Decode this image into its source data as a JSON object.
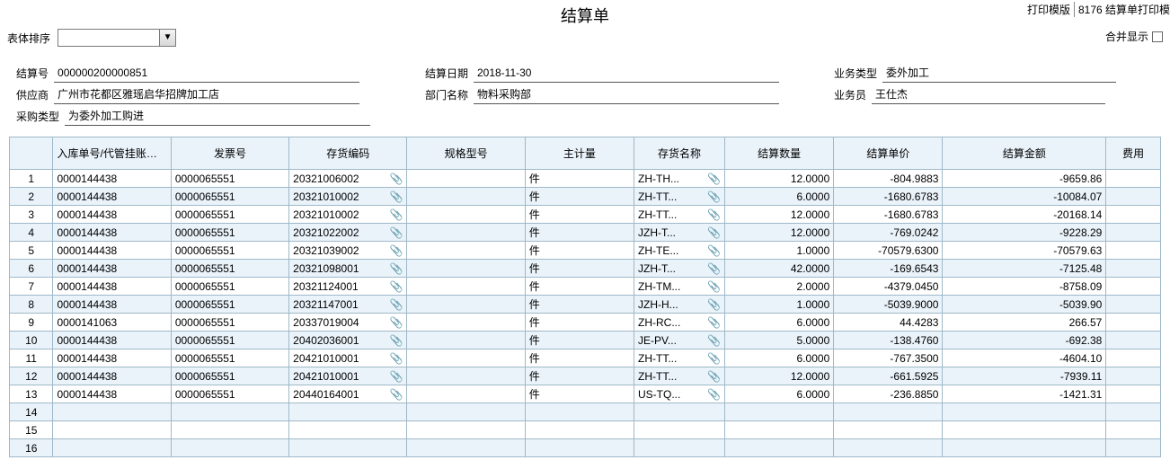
{
  "header": {
    "title": "结算单",
    "print_template_label": "打印模版",
    "print_template_value": "8176 结算单打印模",
    "sort_label": "表体排序",
    "merge_label": "合并显示"
  },
  "fields": {
    "settlement_no_label": "结算号",
    "settlement_no": "000000200000851",
    "supplier_label": "供应商",
    "supplier": "广州市花都区雅瑶启华招牌加工店",
    "purchase_type_label": "采购类型",
    "purchase_type": "为委外加工购进",
    "settle_date_label": "结算日期",
    "settle_date": "2018-11-30",
    "dept_label": "部门名称",
    "dept": "物料采购部",
    "biz_type_label": "业务类型",
    "biz_type": "委外加工",
    "clerk_label": "业务员",
    "clerk": "王仕杰"
  },
  "grid": {
    "columns": [
      "入库单号/代管挂账单号",
      "发票号",
      "存货编码",
      "规格型号",
      "主计量",
      "存货名称",
      "结算数量",
      "结算单价",
      "结算金额",
      "费用"
    ],
    "rows": [
      {
        "n": 1,
        "a": "0000144438",
        "b": "0000065551",
        "c": "20321006002",
        "d": "",
        "e": "件",
        "f": "ZH-TH...",
        "g": "12.0000",
        "h": "-804.9883",
        "i": "-9659.86"
      },
      {
        "n": 2,
        "a": "0000144438",
        "b": "0000065551",
        "c": "20321010002",
        "d": "",
        "e": "件",
        "f": "ZH-TT...",
        "g": "6.0000",
        "h": "-1680.6783",
        "i": "-10084.07"
      },
      {
        "n": 3,
        "a": "0000144438",
        "b": "0000065551",
        "c": "20321010002",
        "d": "",
        "e": "件",
        "f": "ZH-TT...",
        "g": "12.0000",
        "h": "-1680.6783",
        "i": "-20168.14"
      },
      {
        "n": 4,
        "a": "0000144438",
        "b": "0000065551",
        "c": "20321022002",
        "d": "",
        "e": "件",
        "f": "JZH-T...",
        "g": "12.0000",
        "h": "-769.0242",
        "i": "-9228.29"
      },
      {
        "n": 5,
        "a": "0000144438",
        "b": "0000065551",
        "c": "20321039002",
        "d": "",
        "e": "件",
        "f": "ZH-TE...",
        "g": "1.0000",
        "h": "-70579.6300",
        "i": "-70579.63"
      },
      {
        "n": 6,
        "a": "0000144438",
        "b": "0000065551",
        "c": "20321098001",
        "d": "",
        "e": "件",
        "f": "JZH-T...",
        "g": "42.0000",
        "h": "-169.6543",
        "i": "-7125.48"
      },
      {
        "n": 7,
        "a": "0000144438",
        "b": "0000065551",
        "c": "20321124001",
        "d": "",
        "e": "件",
        "f": "ZH-TM...",
        "g": "2.0000",
        "h": "-4379.0450",
        "i": "-8758.09"
      },
      {
        "n": 8,
        "a": "0000144438",
        "b": "0000065551",
        "c": "20321147001",
        "d": "",
        "e": "件",
        "f": "JZH-H...",
        "g": "1.0000",
        "h": "-5039.9000",
        "i": "-5039.90"
      },
      {
        "n": 9,
        "a": "0000141063",
        "b": "0000065551",
        "c": "20337019004",
        "d": "",
        "e": "件",
        "f": "ZH-RC...",
        "g": "6.0000",
        "h": "44.4283",
        "i": "266.57"
      },
      {
        "n": 10,
        "a": "0000144438",
        "b": "0000065551",
        "c": "20402036001",
        "d": "",
        "e": "件",
        "f": "JE-PV...",
        "g": "5.0000",
        "h": "-138.4760",
        "i": "-692.38"
      },
      {
        "n": 11,
        "a": "0000144438",
        "b": "0000065551",
        "c": "20421010001",
        "d": "",
        "e": "件",
        "f": "ZH-TT...",
        "g": "6.0000",
        "h": "-767.3500",
        "i": "-4604.10"
      },
      {
        "n": 12,
        "a": "0000144438",
        "b": "0000065551",
        "c": "20421010001",
        "d": "",
        "e": "件",
        "f": "ZH-TT...",
        "g": "12.0000",
        "h": "-661.5925",
        "i": "-7939.11"
      },
      {
        "n": 13,
        "a": "0000144438",
        "b": "0000065551",
        "c": "20440164001",
        "d": "",
        "e": "件",
        "f": "US-TQ...",
        "g": "6.0000",
        "h": "-236.8850",
        "i": "-1421.31"
      }
    ],
    "empty_rows": [
      14,
      15,
      16
    ]
  },
  "icons": {
    "clip": "📎"
  }
}
